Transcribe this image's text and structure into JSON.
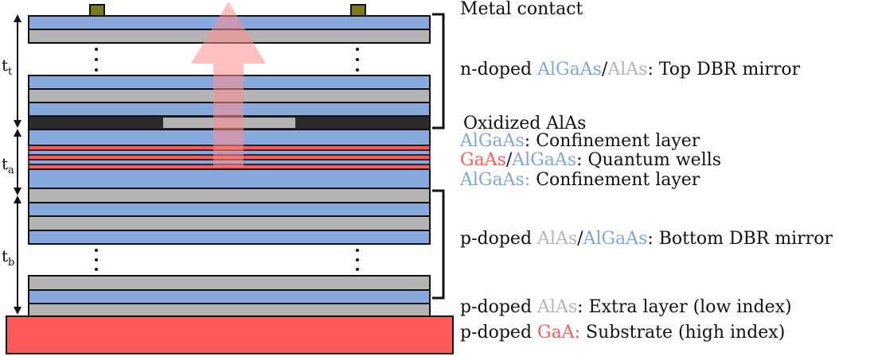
{
  "colors": {
    "algaas": "#87a9dd",
    "alas": "#b4b4b4",
    "gaas": "#ff5a5a",
    "oxide": "#2c2c2c",
    "contact": "#7a7a1a",
    "arrow": "#ff8c8c",
    "outline": "#111111",
    "text": "#111111"
  },
  "thickness_labels": {
    "top": {
      "base": "t",
      "sub": "t"
    },
    "active": {
      "base": "t",
      "sub": "a"
    },
    "bottom": {
      "base": "t",
      "sub": "b"
    }
  },
  "labels": {
    "metal_contact": "Metal contact",
    "top_dbr": {
      "prefix": "n-doped ",
      "m1": "AlGaAs",
      "sep": "/",
      "m2": "AlAs",
      "suffix": ": Top DBR mirror"
    },
    "oxide": "Oxidized AlAs",
    "confinement_top": {
      "m1": "AlGaAs",
      "suffix": ": Confinement layer"
    },
    "quantum_wells": {
      "m1": "GaAs",
      "sep": "/",
      "m2": "AlGaAs",
      "suffix": ": Quantum wells"
    },
    "confinement_bottom": {
      "m1": "AlGaAs:",
      "suffix": " Confinement layer"
    },
    "bottom_dbr": {
      "prefix": "p-doped ",
      "m1": "AlAs",
      "sep": "/",
      "m2": "AlGaAs",
      "suffix": ": Bottom DBR mirror"
    },
    "extra_layer": {
      "prefix": "p-doped ",
      "m1": "AlAs",
      "suffix": ": Extra layer (low index)"
    },
    "substrate": {
      "prefix": "p-doped ",
      "m1": "GaA:",
      "suffix": " Substrate (high index)"
    }
  }
}
